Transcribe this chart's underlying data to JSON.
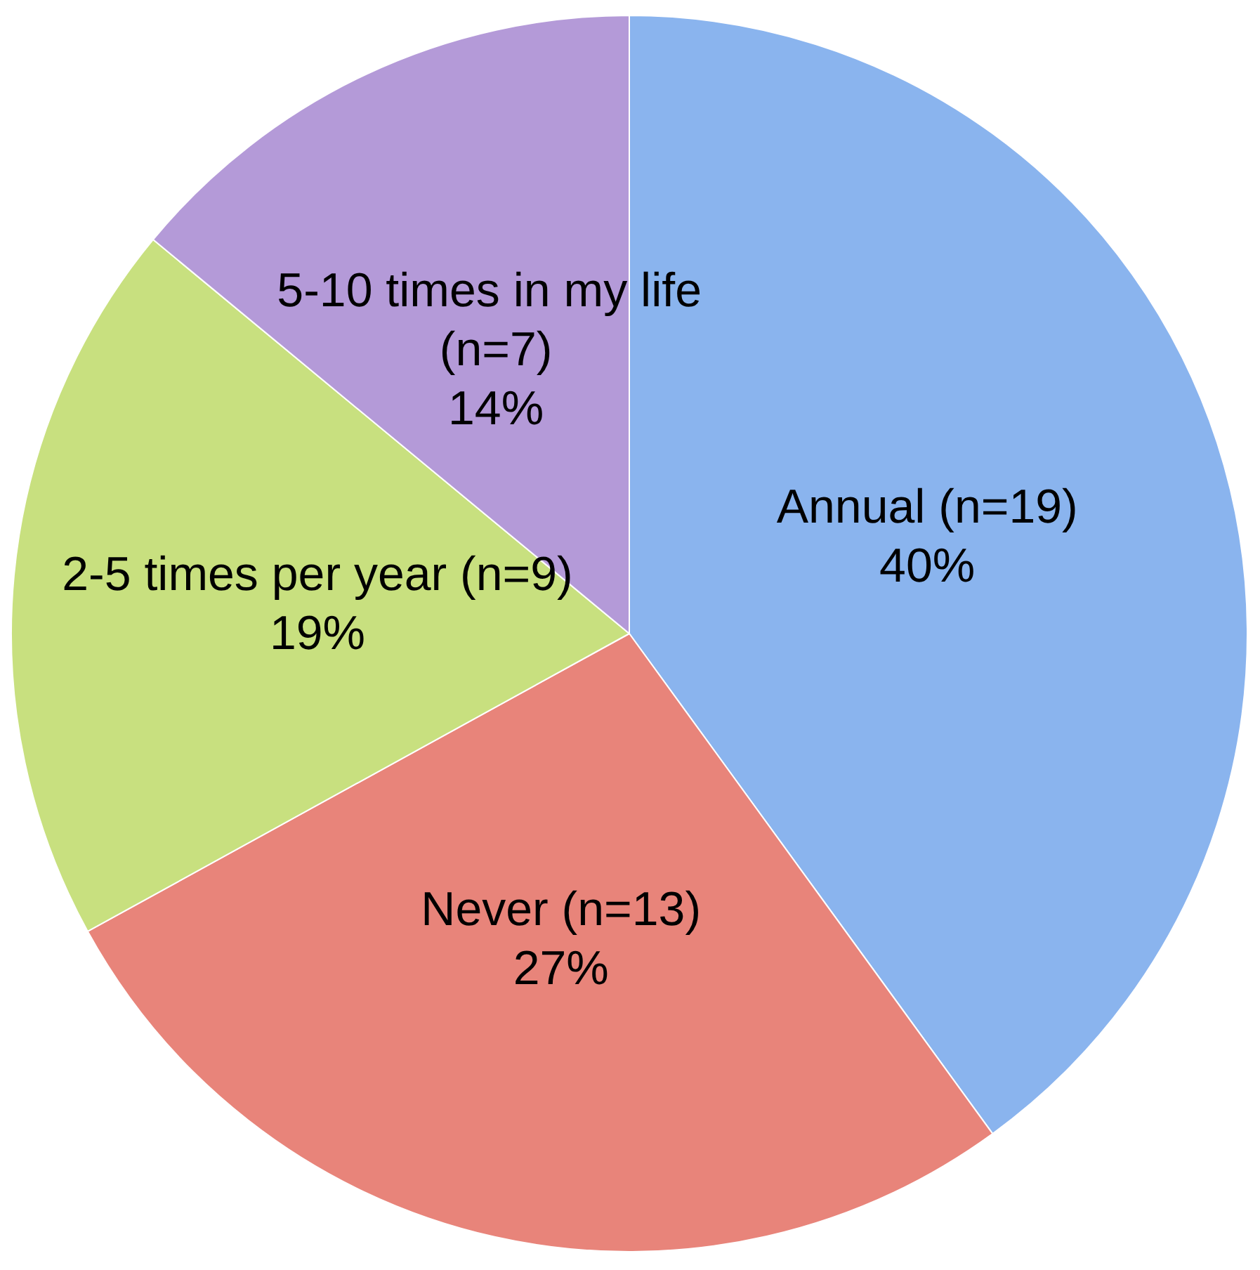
{
  "chart_data": {
    "type": "pie",
    "categories": [
      "Annual (n=19)",
      "Never (n=13)",
      "2-5 times per year (n=9)",
      "5-10 times in my life (n=7)"
    ],
    "values": [
      40,
      27,
      19,
      14
    ],
    "value_labels": [
      "40%",
      "27%",
      "19%",
      "14%"
    ],
    "colors": [
      "#8ab4ee",
      "#e8847a",
      "#c8e07f",
      "#b49ad8"
    ],
    "legend": false
  }
}
